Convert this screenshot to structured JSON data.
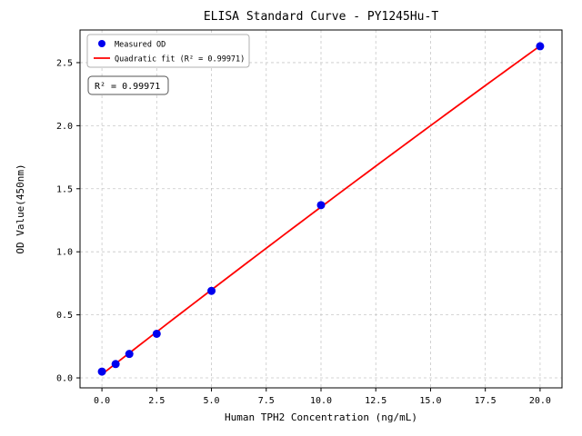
{
  "chart_data": {
    "type": "scatter",
    "title": "ELISA Standard Curve - PY1245Hu-T",
    "xlabel": "Human TPH2 Concentration (ng/mL)",
    "ylabel": "OD Value(450nm)",
    "xlim": [
      -1,
      21
    ],
    "ylim": [
      -0.079,
      2.759
    ],
    "xtick_labels": [
      "0.0",
      "2.5",
      "5.0",
      "7.5",
      "10.0",
      "12.5",
      "15.0",
      "17.5",
      "20.0"
    ],
    "ytick_labels": [
      "0.0",
      "0.5",
      "1.0",
      "1.5",
      "2.0",
      "2.5"
    ],
    "grid": true,
    "legend_position": "upper-left",
    "series": [
      {
        "name": "Measured OD",
        "type": "scatter",
        "color": "#0000ee",
        "x": [
          0,
          0.625,
          1.25,
          2.5,
          5,
          10,
          20
        ],
        "y": [
          0.05,
          0.11,
          0.19,
          0.35,
          0.69,
          1.37,
          2.63
        ]
      },
      {
        "name": "Quadratic fit (R² = 0.99971)",
        "type": "quadratic-fit",
        "color": "#ff0000"
      }
    ],
    "annotation": "R² = 0.99971",
    "colors": {
      "grid": "#c8c8c8",
      "frame": "#000000",
      "text": "#000000",
      "background": "#ffffff",
      "legend_border": "#b0b0b0",
      "annotation_border": "#555555"
    }
  }
}
